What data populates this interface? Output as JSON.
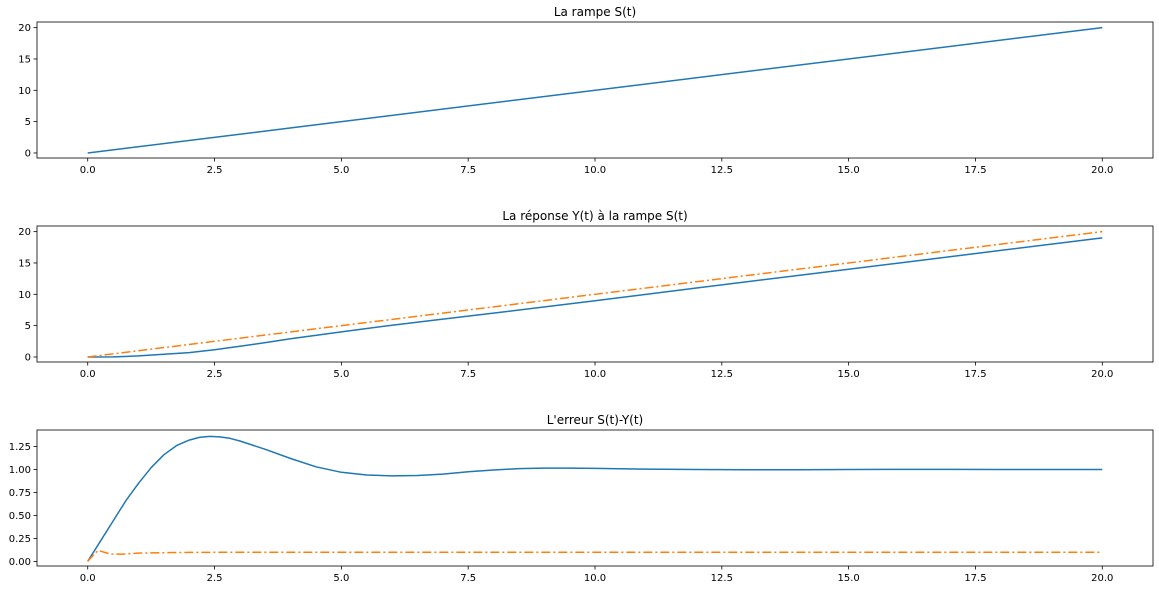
{
  "chart_data": [
    {
      "type": "line",
      "title": "La rampe S(t)",
      "xlabel": "",
      "ylabel": "",
      "xlim": [
        -1.0,
        21.0
      ],
      "ylim": [
        -0.8,
        20.9
      ],
      "xticks": [
        0.0,
        2.5,
        5.0,
        7.5,
        10.0,
        12.5,
        15.0,
        17.5,
        20.0
      ],
      "xtick_labels": [
        "0.0",
        "2.5",
        "5.0",
        "7.5",
        "10.0",
        "12.5",
        "15.0",
        "17.5",
        "20.0"
      ],
      "yticks": [
        0,
        5,
        10,
        15,
        20
      ],
      "ytick_labels": [
        "0",
        "5",
        "10",
        "15",
        "20"
      ],
      "grid": false,
      "series": [
        {
          "color": "#1f77b4",
          "style": "solid",
          "x": [
            0,
            20
          ],
          "y": [
            0,
            20
          ]
        }
      ]
    },
    {
      "type": "line",
      "title": "La réponse Y(t) à la rampe S(t)",
      "xlabel": "",
      "ylabel": "",
      "xlim": [
        -1.0,
        21.0
      ],
      "ylim": [
        -0.8,
        20.9
      ],
      "xticks": [
        0.0,
        2.5,
        5.0,
        7.5,
        10.0,
        12.5,
        15.0,
        17.5,
        20.0
      ],
      "xtick_labels": [
        "0.0",
        "2.5",
        "5.0",
        "7.5",
        "10.0",
        "12.5",
        "15.0",
        "17.5",
        "20.0"
      ],
      "yticks": [
        0,
        5,
        10,
        15,
        20
      ],
      "ytick_labels": [
        "0",
        "5",
        "10",
        "15",
        "20"
      ],
      "grid": false,
      "series": [
        {
          "color": "#1f77b4",
          "style": "solid",
          "x": [
            0,
            0.5,
            1.0,
            1.5,
            2.0,
            2.5,
            3.0,
            3.5,
            4.0,
            5.0,
            6.0,
            7.0,
            8.0,
            10.0,
            12.0,
            14.0,
            16.0,
            18.0,
            20.0
          ],
          "y": [
            0,
            0.02,
            0.17,
            0.45,
            0.7,
            1.15,
            1.7,
            2.3,
            2.9,
            4.0,
            5.07,
            6.05,
            7.01,
            8.98,
            11.0,
            13.0,
            15.0,
            17.0,
            19.0
          ]
        },
        {
          "color": "#ff7f0e",
          "style": "dashdot",
          "x": [
            0,
            20
          ],
          "y": [
            0,
            20
          ]
        }
      ]
    },
    {
      "type": "line",
      "title": "L'erreur S(t)-Y(t)",
      "xlabel": "",
      "ylabel": "",
      "xlim": [
        -1.0,
        21.0
      ],
      "ylim": [
        -0.05,
        1.43
      ],
      "xticks": [
        0.0,
        2.5,
        5.0,
        7.5,
        10.0,
        12.5,
        15.0,
        17.5,
        20.0
      ],
      "xtick_labels": [
        "0.0",
        "2.5",
        "5.0",
        "7.5",
        "10.0",
        "12.5",
        "15.0",
        "17.5",
        "20.0"
      ],
      "yticks": [
        0.0,
        0.25,
        0.5,
        0.75,
        1.0,
        1.25
      ],
      "ytick_labels": [
        "0.00",
        "0.25",
        "0.50",
        "0.75",
        "1.00",
        "1.25"
      ],
      "grid": false,
      "series": [
        {
          "color": "#1f77b4",
          "style": "solid",
          "x": [
            0,
            0.25,
            0.5,
            0.75,
            1.0,
            1.25,
            1.5,
            1.75,
            2.0,
            2.2,
            2.4,
            2.6,
            2.8,
            3.0,
            3.5,
            4.0,
            4.5,
            5.0,
            5.5,
            6.0,
            6.5,
            7.0,
            7.5,
            8.0,
            8.5,
            9.0,
            9.5,
            10.0,
            11.0,
            12.0,
            13.0,
            14.0,
            15.0,
            16.0,
            17.0,
            18.0,
            19.0,
            20.0
          ],
          "y": [
            0.0,
            0.22,
            0.44,
            0.66,
            0.85,
            1.02,
            1.16,
            1.26,
            1.32,
            1.35,
            1.36,
            1.355,
            1.34,
            1.31,
            1.22,
            1.12,
            1.03,
            0.97,
            0.94,
            0.93,
            0.935,
            0.95,
            0.975,
            0.995,
            1.01,
            1.015,
            1.015,
            1.012,
            1.005,
            1.0,
            0.998,
            0.998,
            1.0,
            1.001,
            1.001,
            1.0,
            1.0,
            1.0
          ]
        },
        {
          "color": "#ff7f0e",
          "style": "dashdot",
          "x": [
            0,
            0.2,
            0.45,
            0.7,
            1.0,
            1.5,
            2.0,
            3.0,
            4.0,
            5.0,
            20.0
          ],
          "y": [
            0.0,
            0.12,
            0.08,
            0.08,
            0.09,
            0.095,
            0.098,
            0.1,
            0.1,
            0.1,
            0.1
          ]
        }
      ]
    }
  ]
}
